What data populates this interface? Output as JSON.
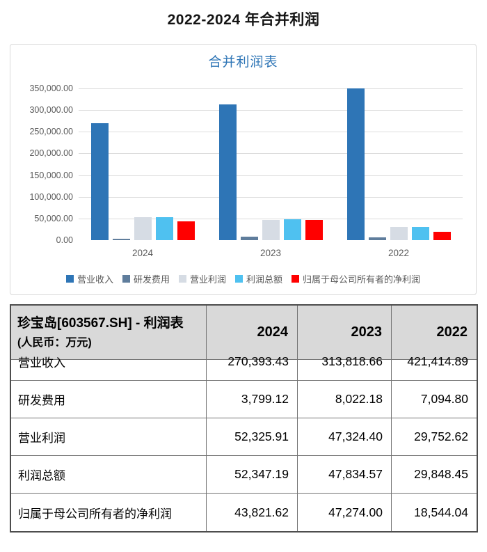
{
  "page_title": "2022-2024 年合并利润",
  "chart_data": {
    "type": "bar",
    "title": "合并利润表",
    "categories": [
      "2024",
      "2023",
      "2022"
    ],
    "series": [
      {
        "key": "operating-revenue",
        "name": "营业收入",
        "color": "#2e75b6",
        "values": [
          270393.43,
          313818.66,
          421414.89
        ]
      },
      {
        "key": "rd-expense",
        "name": "研发费用",
        "color": "#5f7d9c",
        "values": [
          3799.12,
          8022.18,
          7094.8
        ]
      },
      {
        "key": "operating-profit",
        "name": "营业利润",
        "color": "#d6dce4",
        "values": [
          52325.91,
          47324.4,
          29752.62
        ]
      },
      {
        "key": "total-profit",
        "name": "利润总额",
        "color": "#4fc1f0",
        "values": [
          52347.19,
          47834.57,
          29848.45
        ]
      },
      {
        "key": "net-profit-parent",
        "name": "归属于母公司所有者的净利润",
        "color": "#ff0000",
        "values": [
          43821.62,
          47274.0,
          18544.04
        ]
      }
    ],
    "y_axis": {
      "min": 0,
      "max": 350000,
      "step": 50000,
      "tick_labels": [
        "0.00",
        "50,000.00",
        "100,000.00",
        "150,000.00",
        "200,000.00",
        "250,000.00",
        "300,000.00",
        "350,000.00"
      ]
    },
    "xlabel": "",
    "ylabel": "",
    "grid": true,
    "legend_position": "bottom"
  },
  "table": {
    "title_line1": "珍宝岛[603567.SH] - 利润表",
    "title_line2": "(人民币：万元)",
    "columns": [
      "2024",
      "2023",
      "2022"
    ],
    "rows": [
      {
        "key": "operating-revenue",
        "label": "营业收入",
        "values": [
          "270,393.43",
          "313,818.66",
          "421,414.89"
        ]
      },
      {
        "key": "rd-expense",
        "label": "研发费用",
        "values": [
          "3,799.12",
          "8,022.18",
          "7,094.80"
        ]
      },
      {
        "key": "operating-profit",
        "label": "营业利润",
        "values": [
          "52,325.91",
          "47,324.40",
          "29,752.62"
        ]
      },
      {
        "key": "total-profit",
        "label": "利润总额",
        "values": [
          "52,347.19",
          "47,834.57",
          "29,848.45"
        ]
      },
      {
        "key": "net-profit-parent",
        "label": "归属于母公司所有者的净利润",
        "values": [
          "43,821.62",
          "47,274.00",
          "18,544.04"
        ]
      }
    ]
  }
}
